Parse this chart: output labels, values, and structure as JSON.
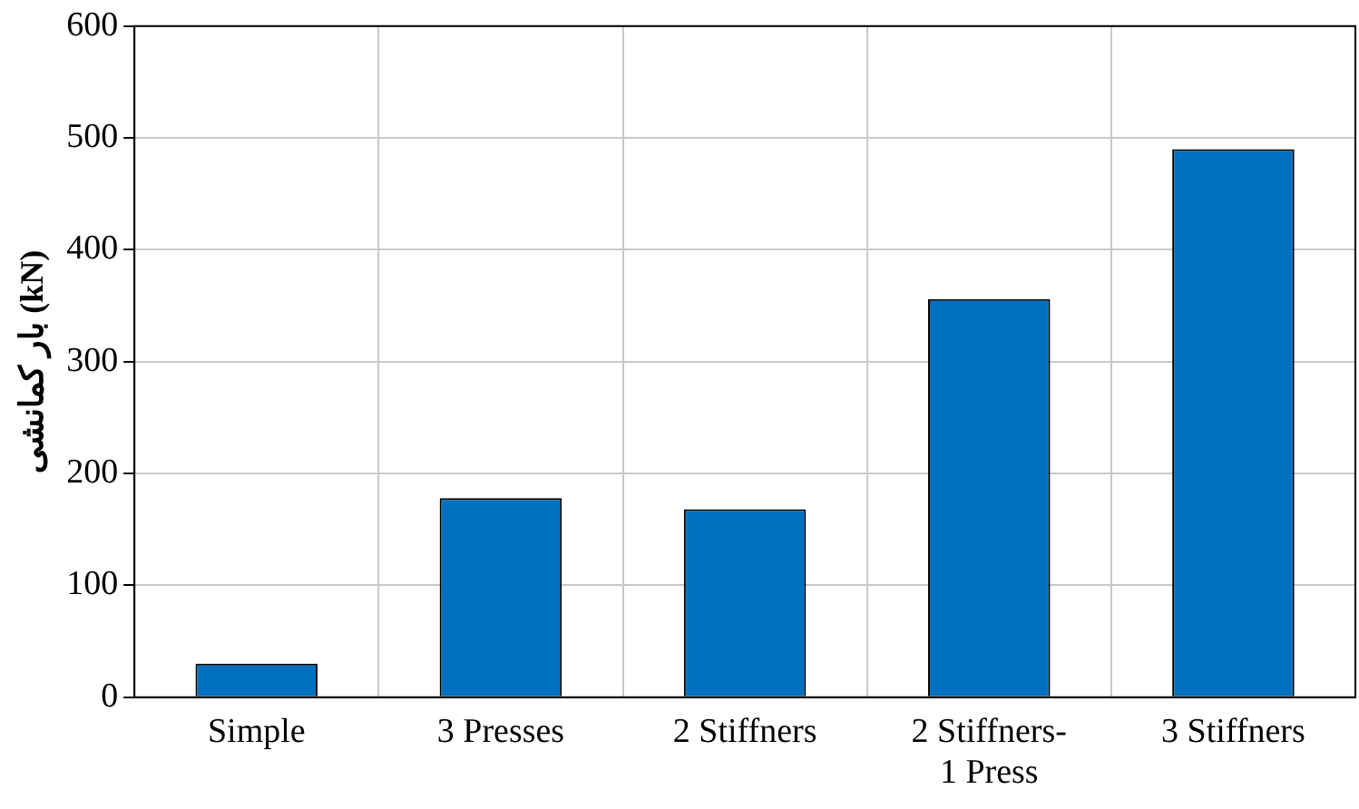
{
  "chart_data": {
    "type": "bar",
    "ylabel": "بار کمانشی (kN)",
    "categories": [
      "Simple",
      "3 Presses",
      "2 Stiffners",
      "2 Stiffners- 1 Press",
      "3 Stiffners"
    ],
    "values": [
      30,
      178,
      168,
      356,
      490
    ],
    "color": "#0070c0",
    "ylim": [
      0,
      600
    ],
    "yticks": [
      0,
      100,
      200,
      300,
      400,
      500,
      600
    ],
    "grid": true
  }
}
